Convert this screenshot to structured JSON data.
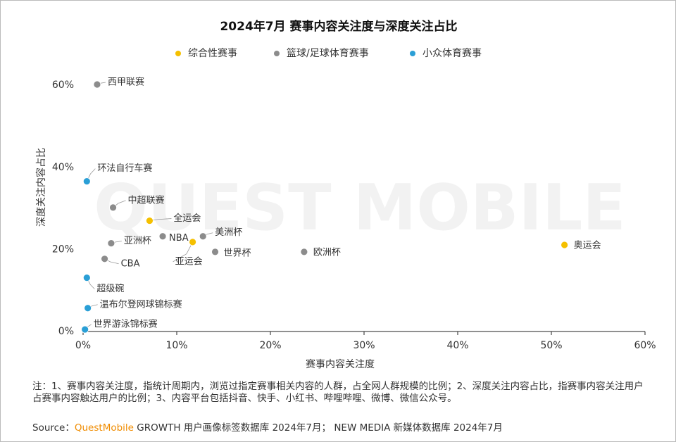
{
  "chart_data": {
    "type": "scatter",
    "title": "2024年7月 赛事内容关注度与深度关注占比",
    "x_label": "赛事内容关注度",
    "y_label": "深度关注内容占比",
    "watermark": "QUEST MOBILE",
    "xlim": [
      0,
      60
    ],
    "ylim": [
      0,
      65
    ],
    "xticks": [
      {
        "value": 0,
        "label": "0%"
      },
      {
        "value": 10,
        "label": "10%"
      },
      {
        "value": 20,
        "label": "20%"
      },
      {
        "value": 30,
        "label": "30%"
      },
      {
        "value": 40,
        "label": "40%"
      },
      {
        "value": 50,
        "label": "50%"
      },
      {
        "value": 60,
        "label": "60%"
      }
    ],
    "yticks": [
      {
        "value": 0,
        "label": "0%"
      },
      {
        "value": 20,
        "label": "20%"
      },
      {
        "value": 40,
        "label": "40%"
      },
      {
        "value": 60,
        "label": "60%"
      }
    ],
    "legend": "top",
    "series": [
      {
        "name": "综合性赛事",
        "color": "#f5c000",
        "labels": [
          "全运会",
          "亚运会",
          "奥运会"
        ],
        "x": [
          7.1,
          11.7,
          51.4
        ],
        "values": [
          27.0,
          21.8,
          21.1
        ]
      },
      {
        "name": "篮球/足球体育赛事",
        "color": "#8c8c8c",
        "labels": [
          "西甲联赛",
          "中超联赛",
          "NBA",
          "美洲杯",
          "亚洲杯",
          "世界杯",
          "欧洲杯",
          "CBA"
        ],
        "x": [
          1.5,
          3.2,
          8.5,
          12.8,
          3.0,
          14.1,
          23.6,
          2.3
        ],
        "values": [
          60.2,
          30.2,
          23.2,
          23.2,
          21.5,
          19.4,
          19.4,
          17.7
        ]
      },
      {
        "name": "小众体育赛事",
        "color": "#2a9fd6",
        "labels": [
          "环法自行车赛",
          "超级碗",
          "温布尔登网球锦标赛",
          "世界游泳锦标赛"
        ],
        "x": [
          0.4,
          0.4,
          0.5,
          0.2
        ],
        "values": [
          36.6,
          13.1,
          5.7,
          0.5
        ]
      }
    ]
  },
  "note": "注：1、赛事内容关注度，指统计周期内，浏览过指定赛事相关内容的人群，占全网人群规模的比例；2、深度关注内容占比，指赛事内容关注用户占赛事内容触达用户的比例；3、内容平台包括抖音、快手、小红书、哔哩哔哩、微博、微信公众号。",
  "source": {
    "prefix": "Source：",
    "brand": "QuestMobile",
    "rest": "GROWTH 用户画像标签数据库 2024年7月； NEW MEDIA 新媒体数据库 2024年7月"
  }
}
